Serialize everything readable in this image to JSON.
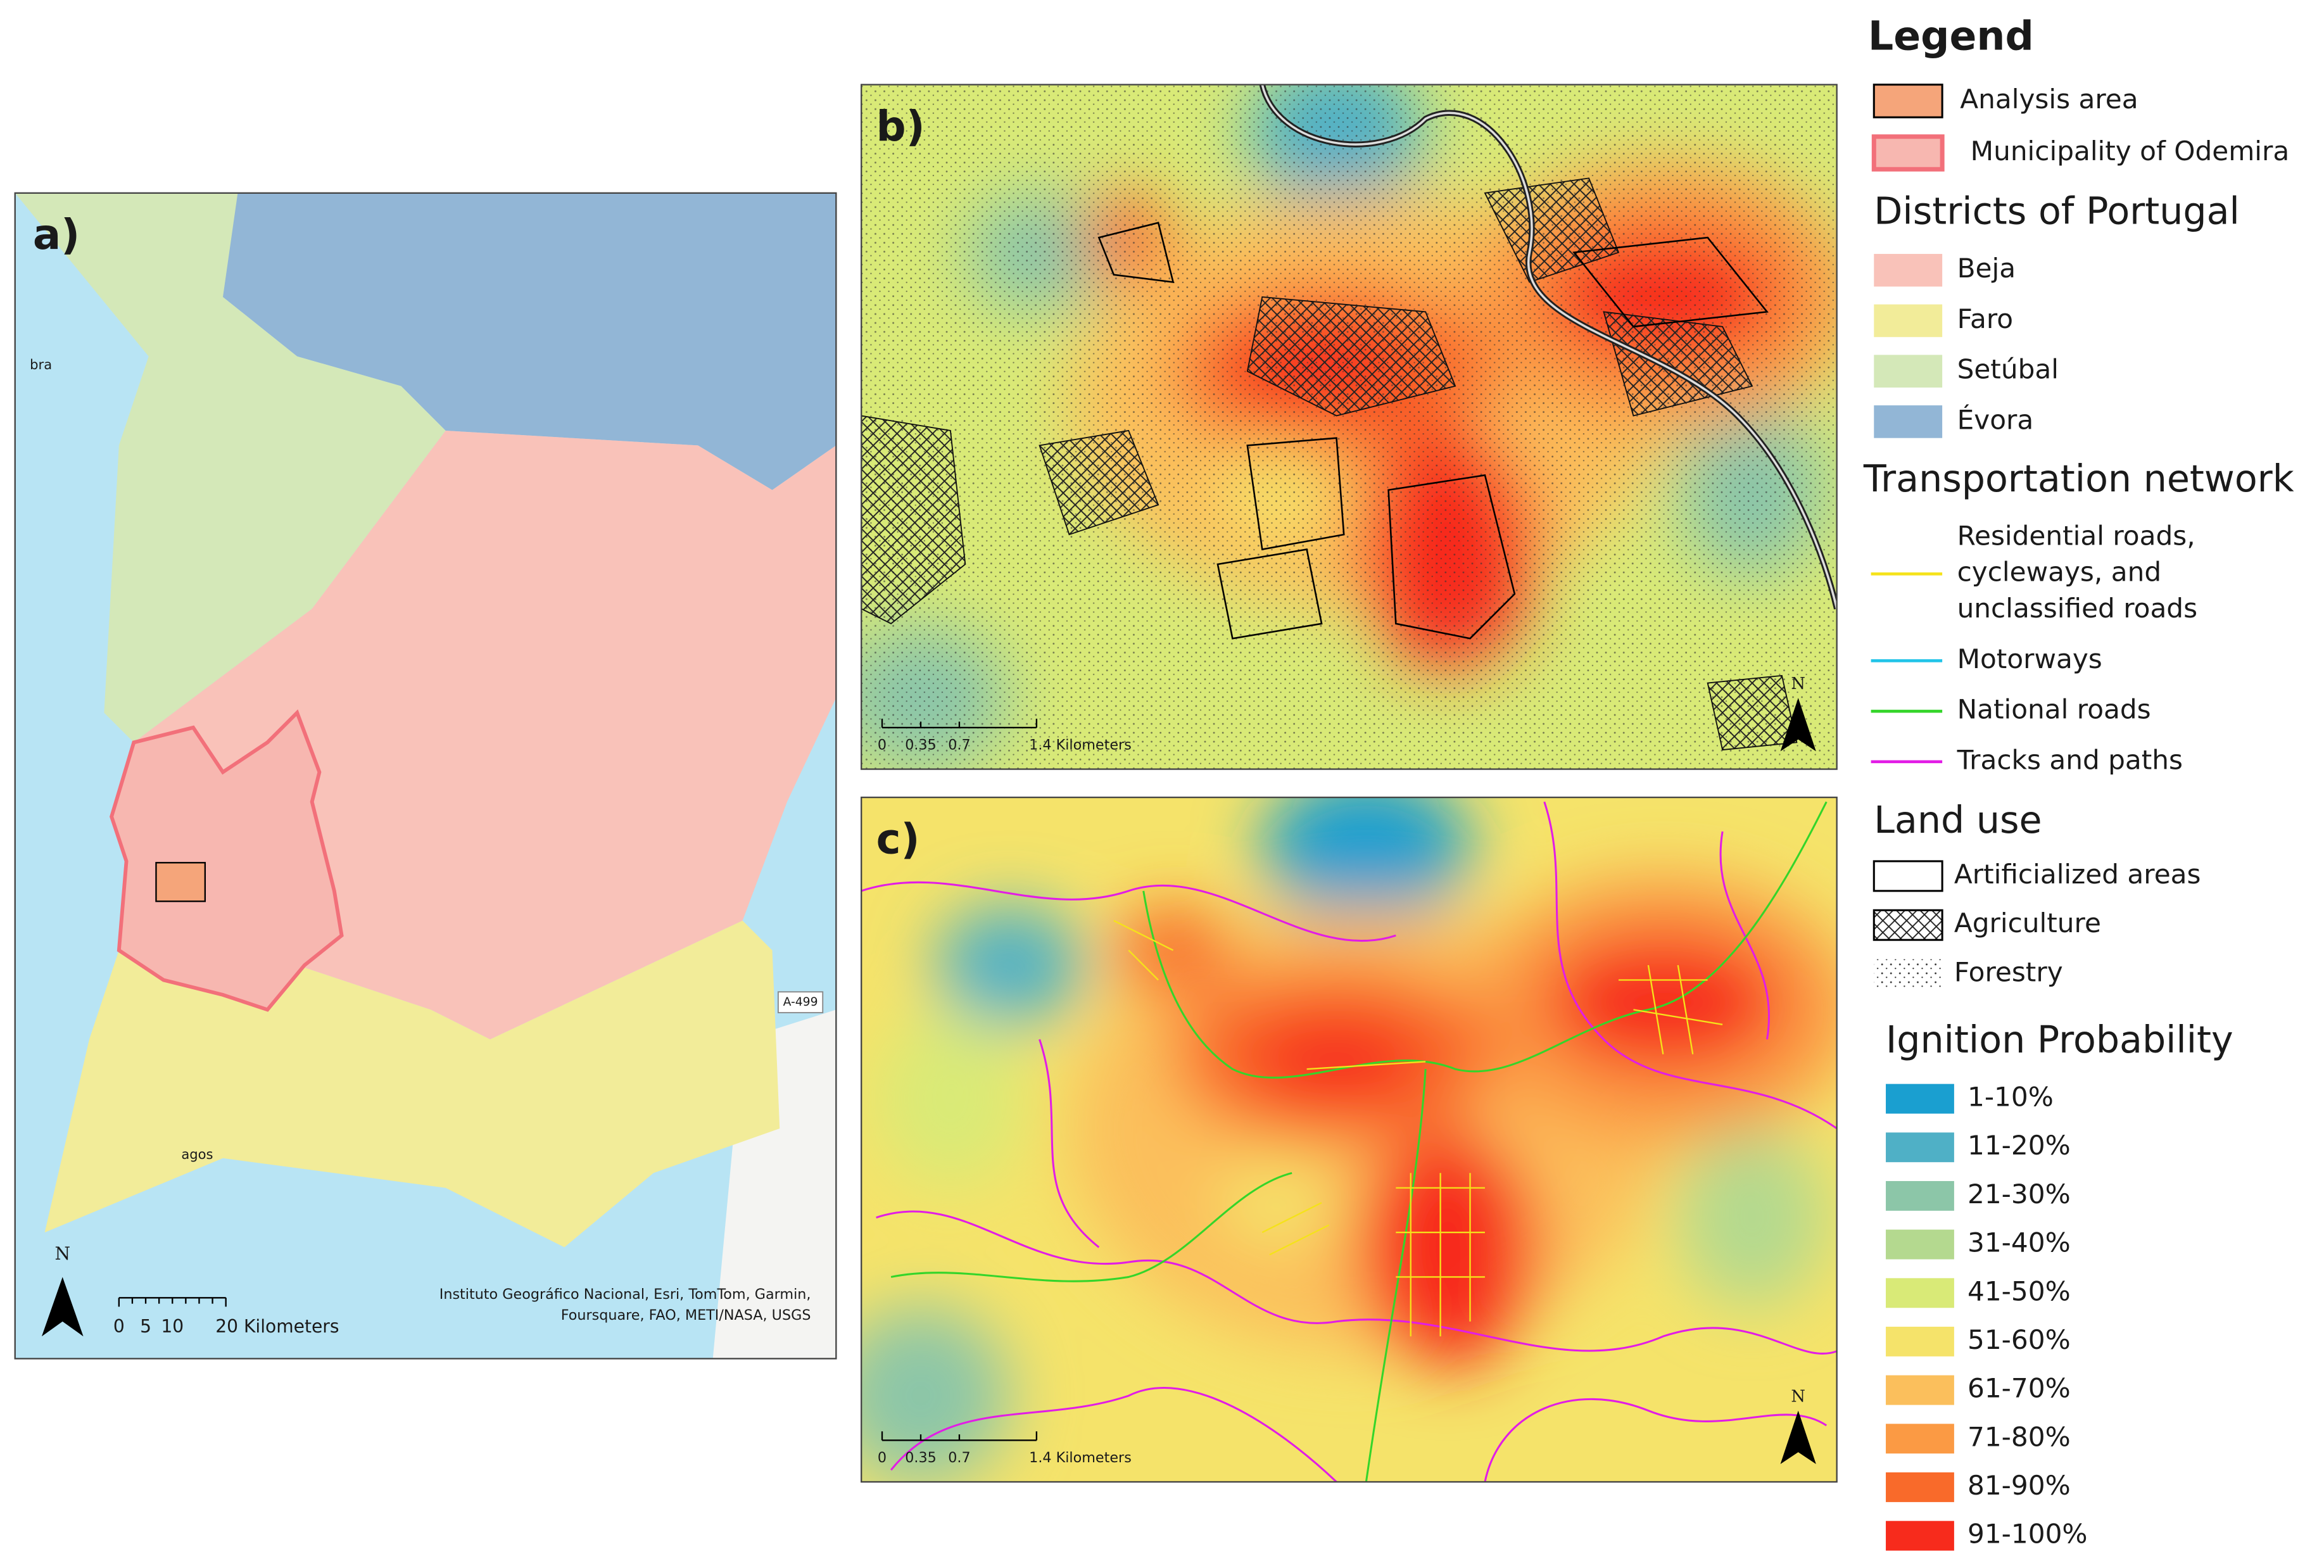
{
  "panels": {
    "a": {
      "label": "a)",
      "map_labels": [
        "bra",
        "agos",
        "A-499"
      ],
      "north": "N",
      "scale_labels": [
        "0",
        "5",
        "10",
        "20 Kilometers"
      ],
      "attribution": [
        "Instituto Geográfico Nacional, Esri, TomTom, Garmin,",
        "Foursquare, FAO, METI/NASA, USGS"
      ]
    },
    "b": {
      "label": "b)",
      "north": "N",
      "scale_labels": [
        "0",
        "0.35",
        "0.7",
        "1.4 Kilometers"
      ]
    },
    "c": {
      "label": "c)",
      "north": "N",
      "scale_labels": [
        "0",
        "0.35",
        "0.7",
        "1.4 Kilometers"
      ]
    }
  },
  "legend": {
    "title": "Legend",
    "areas": [
      {
        "label": "Analysis area",
        "color": "#f5a57a",
        "stroke": "#000000"
      },
      {
        "label": "Municipality of Odemira",
        "color": "#f7b7b0",
        "stroke": "#f2707a"
      }
    ],
    "districts_title": "Districts of Portugal",
    "districts": [
      {
        "label": "Beja",
        "color": "#f9c2b9"
      },
      {
        "label": "Faro",
        "color": "#f2ec99"
      },
      {
        "label": "Setúbal",
        "color": "#d4e8b8"
      },
      {
        "label": "Évora",
        "color": "#92b6d6"
      }
    ],
    "transport_title": "Transportation network",
    "transport": [
      {
        "label": [
          "Residential roads,",
          "cycleways, and",
          "unclassified roads"
        ],
        "color": "#f5e21a"
      },
      {
        "label": [
          "Motorways"
        ],
        "color": "#22c4e8"
      },
      {
        "label": [
          "National roads"
        ],
        "color": "#34d52a"
      },
      {
        "label": [
          "Tracks and paths"
        ],
        "color": "#e21ce6"
      }
    ],
    "landuse_title": "Land use",
    "landuse": [
      "Artificialized areas",
      "Agriculture",
      "Forestry"
    ],
    "ignition_title": "Ignition Probability",
    "ignition": [
      {
        "label": "1-10%",
        "color": "#1a9fd0"
      },
      {
        "label": "11-20%",
        "color": "#4fb0c6"
      },
      {
        "label": "21-30%",
        "color": "#8cc6a8"
      },
      {
        "label": "31-40%",
        "color": "#b4d98f"
      },
      {
        "label": "41-50%",
        "color": "#d9ea77"
      },
      {
        "label": "51-60%",
        "color": "#f5e36a"
      },
      {
        "label": "61-70%",
        "color": "#fbbf5c"
      },
      {
        "label": "71-80%",
        "color": "#fb9a44"
      },
      {
        "label": "81-90%",
        "color": "#f96a2a"
      },
      {
        "label": "91-100%",
        "color": "#f72b1c"
      }
    ]
  }
}
